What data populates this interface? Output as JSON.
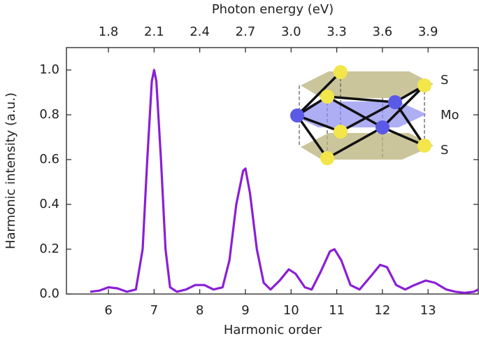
{
  "chart_data": {
    "type": "line",
    "xlabel": "Harmonic order",
    "ylabel": "Harmonic intensity (a.u.)",
    "x2label": "Photon energy (eV)",
    "x": [
      5.6,
      5.8,
      6.0,
      6.2,
      6.4,
      6.6,
      6.75,
      6.85,
      6.95,
      7.0,
      7.05,
      7.15,
      7.25,
      7.35,
      7.5,
      7.7,
      7.9,
      8.1,
      8.3,
      8.5,
      8.65,
      8.8,
      8.95,
      9.0,
      9.1,
      9.25,
      9.4,
      9.55,
      9.75,
      9.95,
      10.1,
      10.3,
      10.45,
      10.65,
      10.85,
      10.95,
      11.1,
      11.3,
      11.5,
      11.75,
      11.95,
      12.1,
      12.3,
      12.5,
      12.7,
      12.95,
      13.15,
      13.4,
      13.6,
      13.8,
      14.0,
      14.1
    ],
    "values": [
      0.01,
      0.015,
      0.03,
      0.025,
      0.01,
      0.02,
      0.2,
      0.6,
      0.95,
      1.0,
      0.95,
      0.6,
      0.2,
      0.03,
      0.01,
      0.02,
      0.04,
      0.04,
      0.02,
      0.03,
      0.15,
      0.4,
      0.55,
      0.56,
      0.45,
      0.2,
      0.05,
      0.02,
      0.06,
      0.11,
      0.09,
      0.03,
      0.02,
      0.1,
      0.19,
      0.2,
      0.15,
      0.04,
      0.02,
      0.08,
      0.13,
      0.12,
      0.04,
      0.02,
      0.04,
      0.06,
      0.05,
      0.02,
      0.01,
      0.005,
      0.01,
      0.02
    ],
    "color": "#8a1fd6",
    "xlim": [
      5.08,
      14.1
    ],
    "xticks": [
      6,
      7,
      8,
      9,
      10,
      11,
      12,
      13
    ],
    "x2lim": [
      1.524,
      4.23
    ],
    "x2ticks": [
      1.8,
      2.1,
      2.4,
      2.7,
      {
        "value": 3.0,
        "label": "3.0"
      },
      3.3,
      3.6,
      3.9
    ],
    "ylim": [
      0,
      1.1
    ],
    "yticks": [
      {
        "value": 0,
        "label": "0.0"
      },
      0.2,
      0.4,
      0.6,
      0.8,
      {
        "value": 1,
        "label": "1.0"
      }
    ],
    "annotations": [
      "S",
      "Mo",
      "S"
    ]
  }
}
